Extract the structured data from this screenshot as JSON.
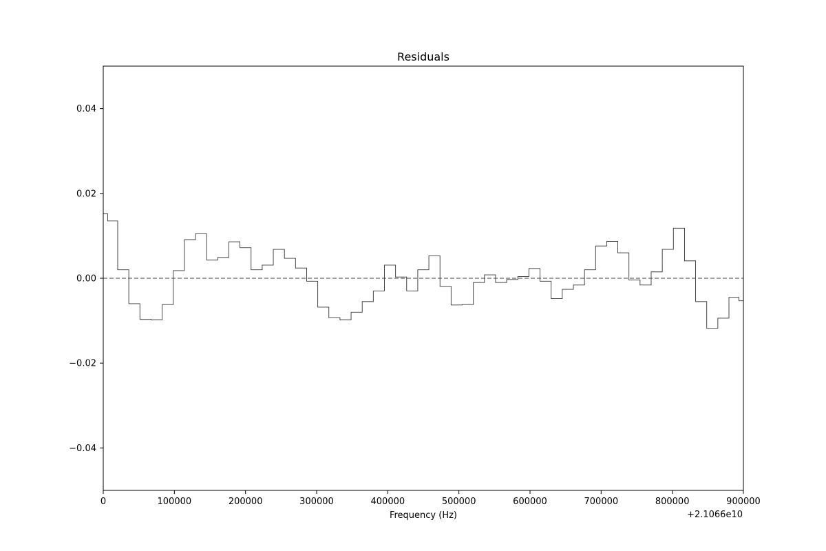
{
  "chart_data": {
    "type": "line",
    "drawstyle": "steps-mid",
    "title": "Residuals",
    "xlabel": "Frequency (Hz)",
    "ylabel": "",
    "x_offset_label": "+2.1066e10",
    "xlim": [
      0,
      900000
    ],
    "ylim": [
      -0.05,
      0.05
    ],
    "x_ticks": [
      0,
      100000,
      200000,
      300000,
      400000,
      500000,
      600000,
      700000,
      800000,
      900000
    ],
    "x_tick_labels": [
      "0",
      "100000",
      "200000",
      "300000",
      "400000",
      "500000",
      "600000",
      "700000",
      "800000",
      "900000"
    ],
    "y_ticks": [
      -0.04,
      -0.02,
      0.0,
      0.02,
      0.04
    ],
    "y_tick_labels": [
      "−0.04",
      "−0.02",
      "0.00",
      "0.02",
      "0.04"
    ],
    "grid": false,
    "reference_line": {
      "y": 0.0,
      "style": "dashed",
      "color": "#808080"
    },
    "series_color": "#333333",
    "series": [
      {
        "x": [
          0,
          12500,
          28125,
          43750,
          59375,
          75000,
          90625,
          106250,
          121875,
          137500,
          153125,
          168750,
          184375,
          200000,
          215625,
          231250,
          246875,
          262500,
          278125,
          293750,
          309375,
          325000,
          340625,
          356250,
          371875,
          387500,
          403125,
          418750,
          434375,
          450000,
          465625,
          481250,
          496875,
          512500,
          528125,
          543750,
          559375,
          575000,
          590625,
          606250,
          621875,
          637500,
          653125,
          668750,
          684375,
          700000,
          715625,
          731250,
          746875,
          762500,
          778125,
          793750,
          809375,
          825000,
          840625,
          856250,
          871875,
          887500,
          900000
        ],
        "y": [
          0.0152,
          0.0135,
          0.002,
          -0.006,
          -0.0097,
          -0.0098,
          -0.0062,
          0.0018,
          0.0091,
          0.0105,
          0.0043,
          0.0049,
          0.0086,
          0.0072,
          0.002,
          0.0031,
          0.0068,
          0.0047,
          0.0024,
          -0.0007,
          -0.0068,
          -0.0093,
          -0.0098,
          -0.008,
          -0.0055,
          -0.003,
          0.0031,
          0.0003,
          -0.003,
          0.002,
          0.0053,
          -0.0019,
          -0.0063,
          -0.0062,
          -0.001,
          0.0008,
          -0.001,
          -0.0003,
          0.0004,
          0.0023,
          -0.0007,
          -0.0048,
          -0.0026,
          -0.0016,
          0.002,
          0.0076,
          0.0087,
          0.006,
          -0.0004,
          -0.0016,
          0.0015,
          0.0068,
          0.0118,
          0.0041,
          -0.0055,
          -0.0118,
          -0.0094,
          -0.0045,
          -0.0053
        ]
      }
    ]
  }
}
